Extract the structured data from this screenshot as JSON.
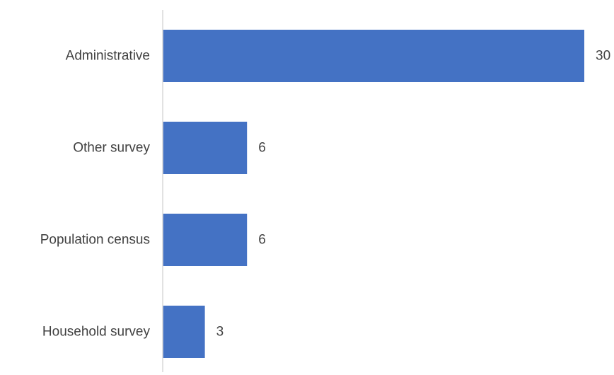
{
  "chart_data": {
    "type": "bar",
    "orientation": "horizontal",
    "categories": [
      "Administrative",
      "Other survey",
      "Population census",
      "Household survey"
    ],
    "values": [
      30,
      6,
      6,
      3
    ],
    "title": "",
    "xlabel": "",
    "ylabel": "",
    "xlim": [
      0,
      31
    ],
    "grid": false,
    "legend": "none",
    "data_labels": true,
    "bar_color": "#4472C4",
    "axis_color": "#D9D9D9",
    "text_color": "#404040"
  }
}
